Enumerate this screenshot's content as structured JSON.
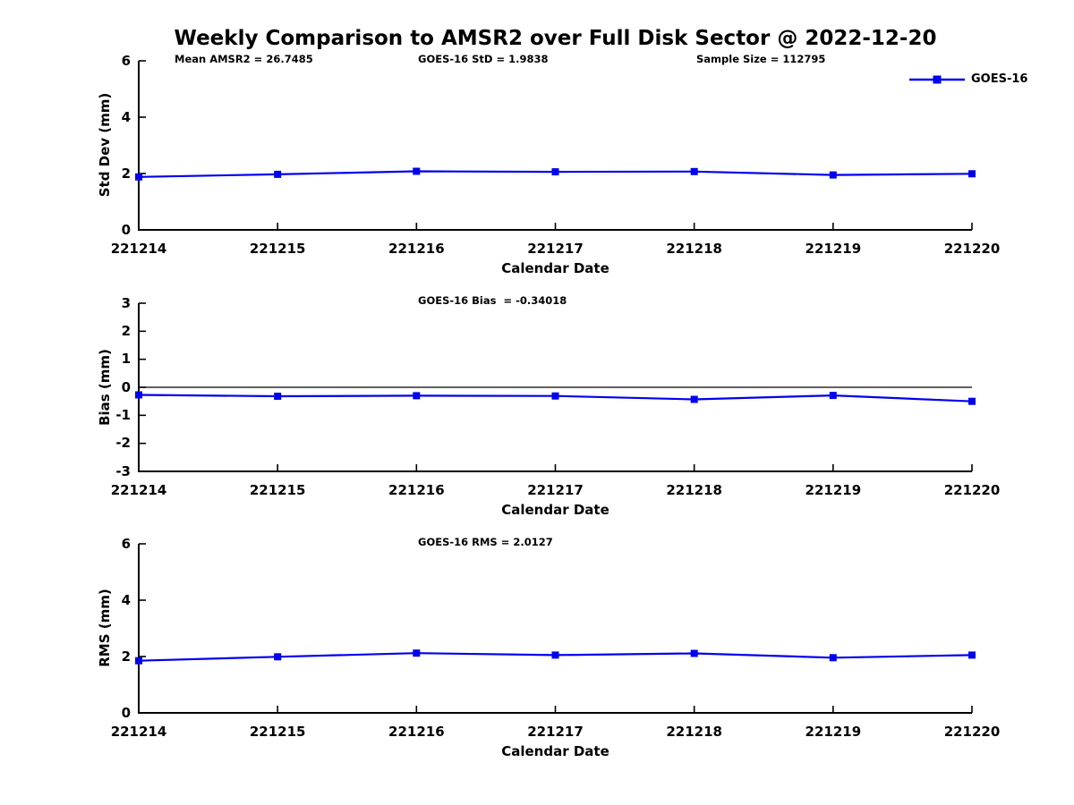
{
  "title": "Weekly Comparison to AMSR2 over Full Disk Sector @ 2022-12-20",
  "series_color": "#0000ee",
  "axis_color": "#000000",
  "legend": {
    "label": "GOES-16",
    "position": "top-right"
  },
  "annotations": {
    "mean_amsr2": "Mean AMSR2 = 26.7485",
    "goes16_std": "GOES-16 StD = 1.9838",
    "sample_size": "Sample Size = 112795",
    "goes16_bias": "GOES-16 Bias  = -0.34018",
    "goes16_rms": "GOES-16 RMS = 2.0127"
  },
  "chart_data": [
    {
      "type": "line",
      "name": "std-dev",
      "xlabel": "Calendar Date",
      "ylabel": "Std Dev (mm)",
      "categories": [
        "221214",
        "221215",
        "221216",
        "221217",
        "221218",
        "221219",
        "221220"
      ],
      "series": [
        {
          "name": "GOES-16",
          "values": [
            1.88,
            1.97,
            2.08,
            2.06,
            2.07,
            1.95,
            1.99
          ]
        }
      ],
      "ylim": [
        0,
        6
      ],
      "yticks": [
        0,
        2,
        4,
        6
      ],
      "grid": false,
      "zero_line": false,
      "marker": "square"
    },
    {
      "type": "line",
      "name": "bias",
      "xlabel": "Calendar Date",
      "ylabel": "Bias (mm)",
      "categories": [
        "221214",
        "221215",
        "221216",
        "221217",
        "221218",
        "221219",
        "221220"
      ],
      "series": [
        {
          "name": "GOES-16",
          "values": [
            -0.27,
            -0.32,
            -0.3,
            -0.31,
            -0.43,
            -0.29,
            -0.5
          ]
        }
      ],
      "ylim": [
        -3,
        3
      ],
      "yticks": [
        -3,
        -2,
        -1,
        0,
        1,
        2,
        3
      ],
      "grid": false,
      "zero_line": true,
      "marker": "square"
    },
    {
      "type": "line",
      "name": "rms",
      "xlabel": "Calendar Date",
      "ylabel": "RMS (mm)",
      "categories": [
        "221214",
        "221215",
        "221216",
        "221217",
        "221218",
        "221219",
        "221220"
      ],
      "series": [
        {
          "name": "GOES-16",
          "values": [
            1.85,
            1.99,
            2.12,
            2.05,
            2.11,
            1.96,
            2.05
          ]
        }
      ],
      "ylim": [
        0,
        6
      ],
      "yticks": [
        0,
        2,
        4,
        6
      ],
      "grid": false,
      "zero_line": false,
      "marker": "square"
    }
  ]
}
